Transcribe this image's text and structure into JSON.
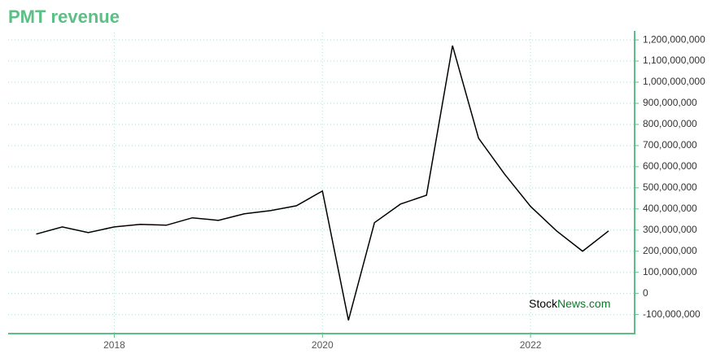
{
  "chart_data": {
    "type": "line",
    "title": "PMT revenue",
    "watermark": [
      "Stock",
      "News.com"
    ],
    "x": [
      2017.25,
      2017.5,
      2017.75,
      2018,
      2018.25,
      2018.5,
      2018.75,
      2019,
      2019.25,
      2019.5,
      2019.75,
      2020,
      2020.25,
      2020.5,
      2020.75,
      2021,
      2021.25,
      2021.5,
      2021.75,
      2022,
      2022.25,
      2022.5,
      2022.75
    ],
    "series": [
      {
        "name": "PMT revenue",
        "color": "#000000",
        "values": [
          281000000,
          315000000,
          288000000,
          315000000,
          327000000,
          323000000,
          358000000,
          346000000,
          377000000,
          392000000,
          415000000,
          485000000,
          -127000000,
          335000000,
          423000000,
          465000000,
          1173000000,
          735000000,
          565000000,
          412000000,
          296000000,
          200000000,
          296000000
        ]
      }
    ],
    "xlim": [
      2016.98,
      2023
    ],
    "xticks": [
      2018,
      2020,
      2022
    ],
    "ylim": [
      -190000000,
      1235000000
    ],
    "yticks": [
      {
        "value": -100000000,
        "label": "-100,000,000"
      },
      0,
      {
        "value": 100000000,
        "label": "100,000,000"
      },
      {
        "value": 200000000,
        "label": "200,000,000"
      },
      {
        "value": 300000000,
        "label": "300,000,000"
      },
      {
        "value": 400000000,
        "label": "400,000,000"
      },
      {
        "value": 500000000,
        "label": "500,000,000"
      },
      {
        "value": 600000000,
        "label": "600,000,000"
      },
      {
        "value": 700000000,
        "label": "700,000,000"
      },
      {
        "value": 800000000,
        "label": "800,000,000"
      },
      {
        "value": 900000000,
        "label": "900,000,000"
      },
      {
        "value": 1000000000,
        "label": "1,000,000,000"
      },
      {
        "value": 1100000000,
        "label": "1,100,000,000"
      },
      {
        "value": 1200000000,
        "label": "1,200,000,000"
      }
    ],
    "grid": true,
    "axis_color": "#5cbf85"
  }
}
